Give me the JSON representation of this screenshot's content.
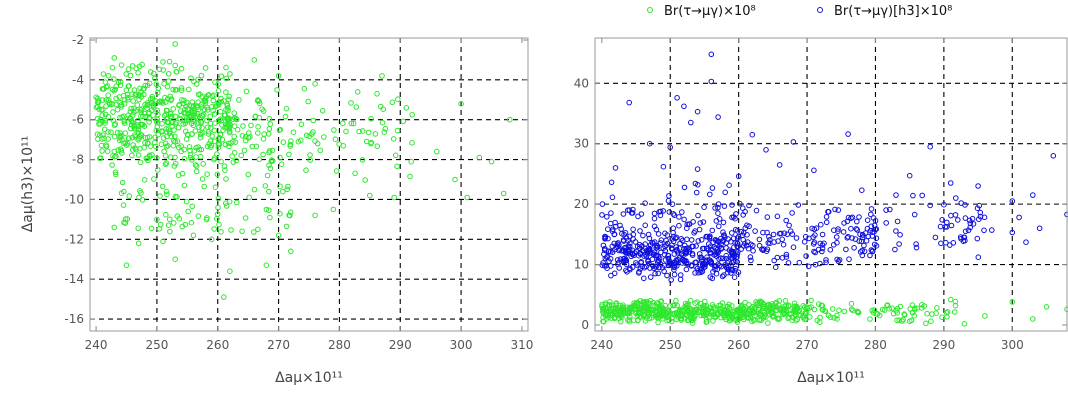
{
  "chart_data": [
    {
      "type": "scatter",
      "title": "",
      "xlabel": "Δaμ×10¹¹",
      "ylabel": "Δaμ(h3)×10¹¹",
      "xlim": [
        239,
        311
      ],
      "ylim": [
        -16.6,
        -1.9
      ],
      "x_ticks": [
        240,
        250,
        260,
        270,
        280,
        290,
        300,
        310
      ],
      "x_tick_labels": [
        "240",
        "250",
        "260",
        "270",
        "280",
        "290",
        "300",
        "310"
      ],
      "y_ticks": [
        -16,
        -14,
        -12,
        -10,
        -8,
        -6,
        -4,
        -2
      ],
      "y_tick_labels": [
        "-16",
        "-14",
        "-12",
        "-10",
        "-8",
        "-6",
        "-4",
        "-2"
      ],
      "x_grid": [
        250,
        260,
        270,
        280,
        290,
        300
      ],
      "y_grid": [
        -16,
        -14,
        -12,
        -10,
        -8,
        -6,
        -4
      ],
      "grid": true,
      "series": [
        {
          "color": "#2ee82e",
          "points": [
            [
              253,
              -2.2
            ],
            [
              266,
              -3
            ],
            [
              243,
              -2.9
            ],
            [
              251,
              -3.1
            ],
            [
              246,
              -3.3
            ],
            [
              258,
              -3.4
            ],
            [
              249,
              -3.6
            ],
            [
              262,
              -3.7
            ],
            [
              270,
              -3.8
            ],
            [
              287,
              -3.8
            ],
            [
              276,
              -4.2
            ],
            [
              283,
              -4.6
            ],
            [
              300,
              -5.2
            ],
            [
              308,
              -6
            ],
            [
              291,
              -5.4
            ],
            [
              296,
              -7.6
            ],
            [
              303,
              -7.9
            ],
            [
              305,
              -8.1
            ],
            [
              299,
              -9
            ],
            [
              307,
              -9.7
            ],
            [
              301,
              -9.9
            ],
            [
              289,
              -9.9
            ],
            [
              285,
              -9.8
            ],
            [
              279,
              -10.5
            ],
            [
              276,
              -10.8
            ],
            [
              272,
              -12.6
            ],
            [
              268,
              -13.3
            ],
            [
              262,
              -13.6
            ],
            [
              261,
              -14.9
            ],
            [
              253,
              -13
            ],
            [
              245,
              -13.3
            ],
            [
              247,
              -12.2
            ],
            [
              251,
              -12.1
            ],
            [
              256,
              -11.8
            ],
            [
              259,
              -12
            ],
            [
              243,
              -11.4
            ],
            [
              250,
              -11
            ],
            [
              264,
              -11.6
            ],
            [
              270,
              -11.8
            ]
          ],
          "density_clusters": [
            {
              "x": [
                240,
                262
              ],
              "y": [
                -8.5,
                -3
              ],
              "n": 430
            },
            {
              "x": [
                240,
                272
              ],
              "y": [
                -10.5,
                -4
              ],
              "n": 150
            },
            {
              "x": [
                262,
                292
              ],
              "y": [
                -9.5,
                -4
              ],
              "n": 95
            },
            {
              "x": [
                244,
                272
              ],
              "y": [
                -12.2,
                -9.5
              ],
              "n": 55
            }
          ]
        }
      ]
    },
    {
      "type": "scatter",
      "title": "",
      "xlabel": "Δaμ×10¹¹",
      "ylabel": "",
      "xlim": [
        239,
        308
      ],
      "ylim": [
        -1,
        47.5
      ],
      "x_ticks": [
        240,
        250,
        260,
        270,
        280,
        290,
        300
      ],
      "x_tick_labels": [
        "240",
        "250",
        "260",
        "270",
        "280",
        "290",
        "300"
      ],
      "y_ticks": [
        0,
        10,
        20,
        30,
        40
      ],
      "y_tick_labels": [
        "0",
        "10",
        "20",
        "30",
        "40"
      ],
      "x_grid": [
        250,
        260,
        270,
        280,
        290,
        300
      ],
      "y_grid": [
        10,
        20,
        30,
        40
      ],
      "grid": true,
      "legend_placement": "top-center",
      "series": [
        {
          "name": "Br(τ→μγ)×10⁸",
          "color": "#2ee82e",
          "points": [
            [
              300,
              3.8
            ],
            [
              308,
              2.6
            ],
            [
              296,
              1.5
            ],
            [
              303,
              1
            ],
            [
              291,
              4.2
            ],
            [
              285,
              0.6
            ],
            [
              305,
              3
            ],
            [
              293,
              0.2
            ]
          ],
          "density_clusters": [
            {
              "x": [
                240,
                270
              ],
              "y": [
                0.2,
                4.2
              ],
              "n": 560
            },
            {
              "x": [
                270,
                292
              ],
              "y": [
                0.2,
                4.2
              ],
              "n": 80
            }
          ]
        },
        {
          "name": "Br(τ→μγ)[h3]×10⁸",
          "color": "#1010dd",
          "points": [
            [
              256,
              44.8
            ],
            [
              256,
              40.3
            ],
            [
              244,
              36.8
            ],
            [
              251,
              37.6
            ],
            [
              252,
              36.2
            ],
            [
              254,
              35.3
            ],
            [
              253,
              33.5
            ],
            [
              257,
              34.4
            ],
            [
              262,
              31.5
            ],
            [
              276,
              31.6
            ],
            [
              268,
              30.3
            ],
            [
              247,
              30
            ],
            [
              250,
              29.4
            ],
            [
              264,
              29
            ],
            [
              288,
              29.5
            ],
            [
              306,
              28
            ],
            [
              242,
              26
            ],
            [
              249,
              26.2
            ],
            [
              254,
              25.8
            ],
            [
              260,
              24.6
            ],
            [
              266,
              26.5
            ],
            [
              271,
              25.6
            ],
            [
              285,
              24.7
            ],
            [
              291,
              23.5
            ],
            [
              295,
              23
            ],
            [
              278,
              22.3
            ],
            [
              283,
              21.5
            ],
            [
              300,
              20.5
            ],
            [
              303,
              21.5
            ],
            [
              290,
              19.9
            ],
            [
              301,
              17.8
            ],
            [
              308,
              18.3
            ],
            [
              297,
              15.7
            ],
            [
              300,
              15.3
            ],
            [
              302,
              13.7
            ],
            [
              304,
              16
            ],
            [
              286,
              12.8
            ],
            [
              293,
              14.5
            ]
          ],
          "density_clusters": [
            {
              "x": [
                240,
                260
              ],
              "y": [
                7,
                16
              ],
              "n": 380
            },
            {
              "x": [
                240,
                262
              ],
              "y": [
                11,
                24
              ],
              "n": 110
            },
            {
              "x": [
                259,
                280
              ],
              "y": [
                9,
                20
              ],
              "n": 150
            },
            {
              "x": [
                279,
                296
              ],
              "y": [
                11,
                22
              ],
              "n": 60
            }
          ]
        }
      ]
    }
  ]
}
